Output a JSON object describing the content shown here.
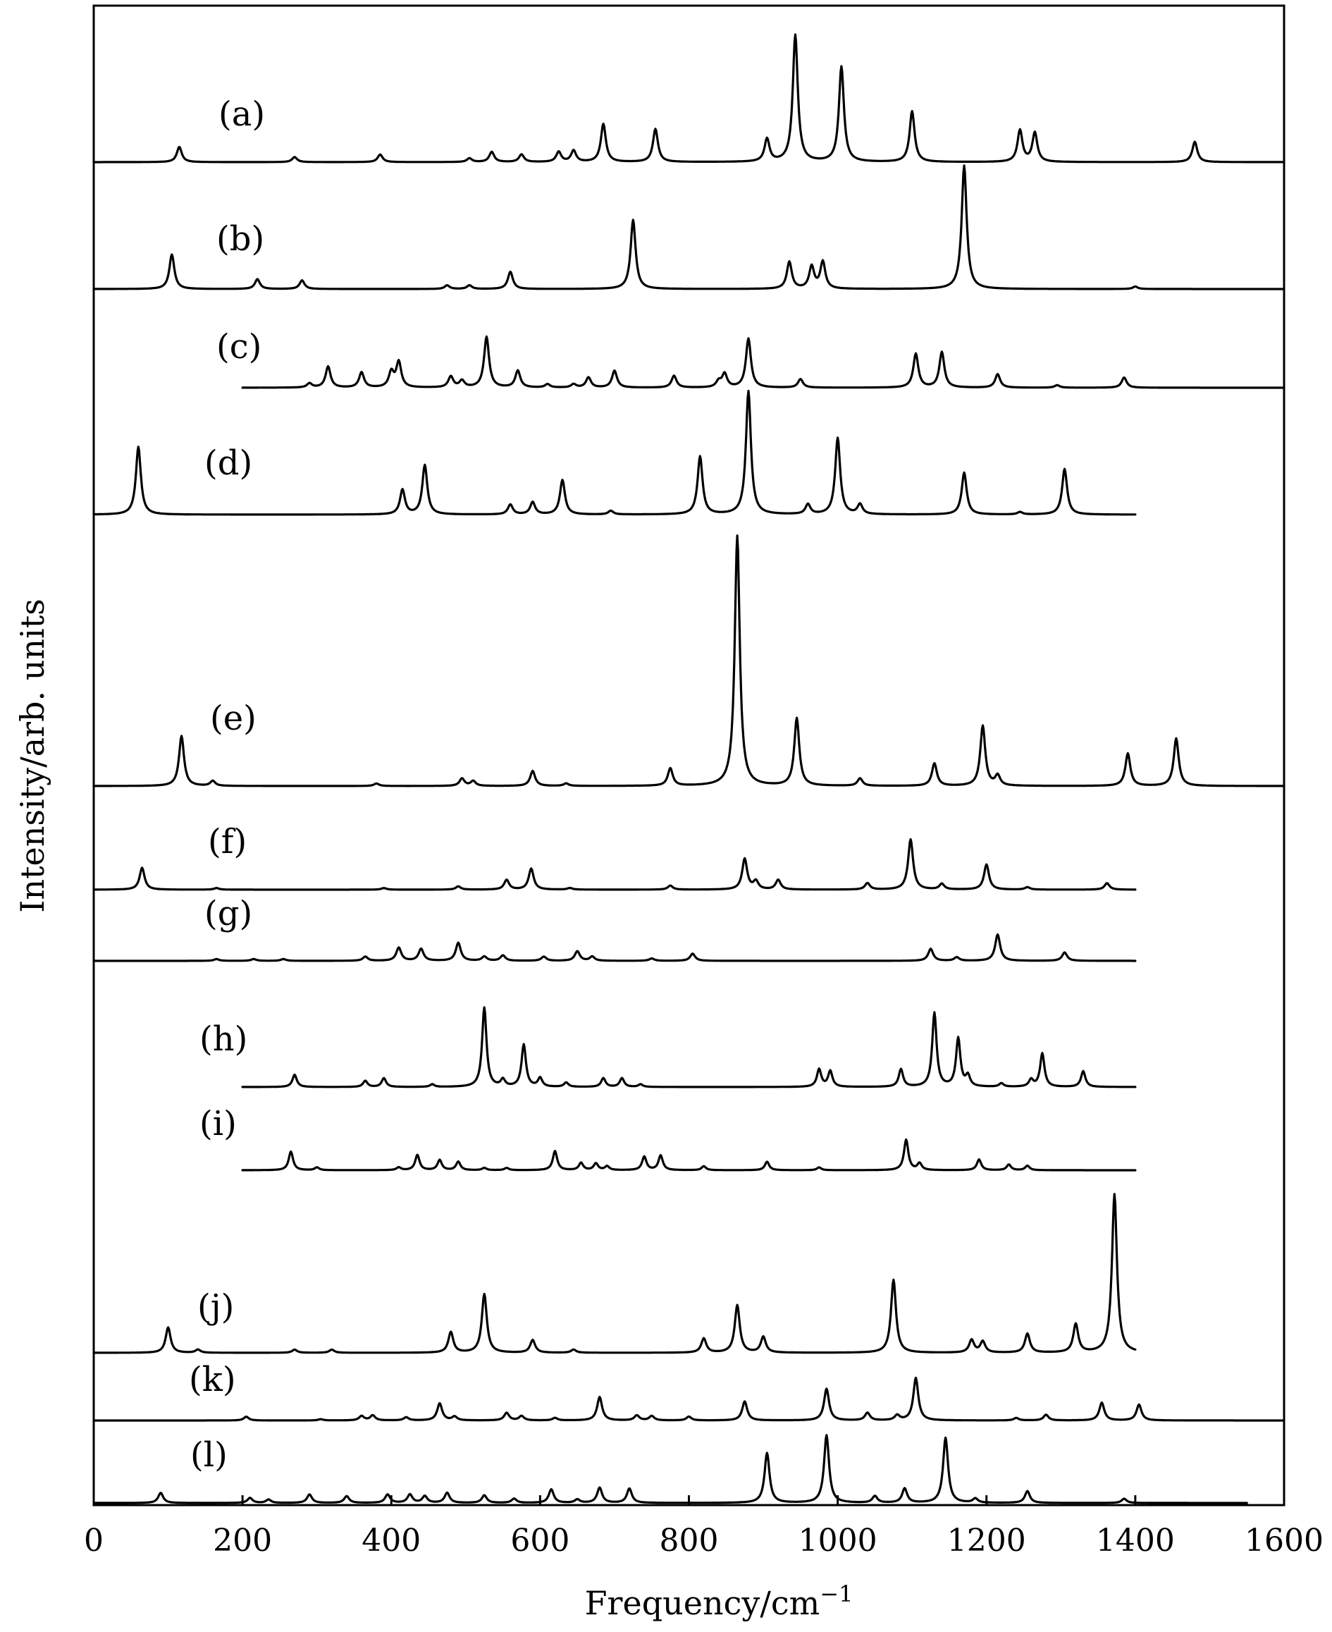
{
  "chart_data": {
    "type": "line",
    "xlabel": "Frequency/cm",
    "xlabel_sup": "−1",
    "ylabel": "Intensity/arb. units",
    "xlim": [
      0,
      1600
    ],
    "xticks": [
      0,
      200,
      400,
      600,
      800,
      1000,
      1200,
      1400,
      1600
    ],
    "grid": false,
    "legend": "none",
    "series": [
      {
        "name": "(a)",
        "x_range": [
          0,
          1600
        ],
        "peaks": [
          [
            115,
            0.12
          ],
          [
            270,
            0.04
          ],
          [
            385,
            0.06
          ],
          [
            505,
            0.03
          ],
          [
            535,
            0.08
          ],
          [
            575,
            0.06
          ],
          [
            625,
            0.08
          ],
          [
            645,
            0.09
          ],
          [
            685,
            0.3
          ],
          [
            755,
            0.26
          ],
          [
            905,
            0.18
          ],
          [
            943,
            1.0
          ],
          [
            1005,
            0.75
          ],
          [
            1100,
            0.4
          ],
          [
            1245,
            0.25
          ],
          [
            1265,
            0.23
          ],
          [
            1480,
            0.16
          ]
        ]
      },
      {
        "name": "(b)",
        "x_range": [
          0,
          1600
        ],
        "peaks": [
          [
            105,
            0.28
          ],
          [
            220,
            0.08
          ],
          [
            280,
            0.07
          ],
          [
            475,
            0.03
          ],
          [
            505,
            0.03
          ],
          [
            560,
            0.14
          ],
          [
            725,
            0.56
          ],
          [
            935,
            0.22
          ],
          [
            965,
            0.18
          ],
          [
            980,
            0.22
          ],
          [
            1170,
            1.0
          ],
          [
            1400,
            0.02
          ]
        ]
      },
      {
        "name": "(c)",
        "x_range": [
          200,
          1600
        ],
        "peaks": [
          [
            290,
            0.05
          ],
          [
            315,
            0.25
          ],
          [
            360,
            0.18
          ],
          [
            400,
            0.18
          ],
          [
            410,
            0.3
          ],
          [
            480,
            0.13
          ],
          [
            495,
            0.08
          ],
          [
            528,
            0.6
          ],
          [
            570,
            0.2
          ],
          [
            610,
            0.04
          ],
          [
            645,
            0.04
          ],
          [
            665,
            0.12
          ],
          [
            700,
            0.2
          ],
          [
            780,
            0.14
          ],
          [
            840,
            0.07
          ],
          [
            848,
            0.16
          ],
          [
            880,
            0.58
          ],
          [
            950,
            0.1
          ],
          [
            1105,
            0.4
          ],
          [
            1140,
            0.42
          ],
          [
            1215,
            0.16
          ],
          [
            1295,
            0.03
          ],
          [
            1385,
            0.12
          ]
        ]
      },
      {
        "name": "(d)",
        "x_range": [
          0,
          1400
        ],
        "peaks": [
          [
            60,
            0.55
          ],
          [
            415,
            0.2
          ],
          [
            445,
            0.4
          ],
          [
            560,
            0.08
          ],
          [
            590,
            0.1
          ],
          [
            630,
            0.28
          ],
          [
            695,
            0.03
          ],
          [
            815,
            0.47
          ],
          [
            880,
            1.0
          ],
          [
            960,
            0.08
          ],
          [
            1000,
            0.62
          ],
          [
            1030,
            0.08
          ],
          [
            1170,
            0.34
          ],
          [
            1245,
            0.02
          ],
          [
            1305,
            0.37
          ]
        ]
      },
      {
        "name": "(e)",
        "x_range": [
          0,
          1600
        ],
        "peaks": [
          [
            118,
            0.2
          ],
          [
            160,
            0.02
          ],
          [
            380,
            0.01
          ],
          [
            495,
            0.03
          ],
          [
            510,
            0.02
          ],
          [
            590,
            0.06
          ],
          [
            635,
            0.01
          ],
          [
            775,
            0.07
          ],
          [
            865,
            1.0
          ],
          [
            945,
            0.27
          ],
          [
            1030,
            0.03
          ],
          [
            1130,
            0.09
          ],
          [
            1195,
            0.24
          ],
          [
            1215,
            0.04
          ],
          [
            1390,
            0.13
          ],
          [
            1455,
            0.19
          ]
        ]
      },
      {
        "name": "(f)",
        "x_range": [
          0,
          1400
        ],
        "peaks": [
          [
            65,
            0.27
          ],
          [
            165,
            0.02
          ],
          [
            390,
            0.02
          ],
          [
            490,
            0.04
          ],
          [
            555,
            0.12
          ],
          [
            588,
            0.26
          ],
          [
            640,
            0.02
          ],
          [
            775,
            0.05
          ],
          [
            875,
            0.38
          ],
          [
            890,
            0.1
          ],
          [
            920,
            0.12
          ],
          [
            1040,
            0.08
          ],
          [
            1098,
            0.62
          ],
          [
            1140,
            0.07
          ],
          [
            1200,
            0.31
          ],
          [
            1255,
            0.03
          ],
          [
            1362,
            0.08
          ]
        ]
      },
      {
        "name": "(g)",
        "x_range": [
          0,
          1400
        ],
        "peaks": [
          [
            165,
            0.03
          ],
          [
            215,
            0.03
          ],
          [
            255,
            0.03
          ],
          [
            365,
            0.07
          ],
          [
            410,
            0.22
          ],
          [
            440,
            0.2
          ],
          [
            490,
            0.3
          ],
          [
            525,
            0.07
          ],
          [
            550,
            0.09
          ],
          [
            605,
            0.07
          ],
          [
            650,
            0.16
          ],
          [
            670,
            0.07
          ],
          [
            750,
            0.04
          ],
          [
            805,
            0.12
          ],
          [
            1125,
            0.2
          ],
          [
            1160,
            0.06
          ],
          [
            1215,
            0.44
          ],
          [
            1305,
            0.14
          ]
        ]
      },
      {
        "name": "(h)",
        "x_range": [
          200,
          1400
        ],
        "peaks": [
          [
            270,
            0.14
          ],
          [
            365,
            0.07
          ],
          [
            390,
            0.1
          ],
          [
            455,
            0.03
          ],
          [
            525,
            0.9
          ],
          [
            550,
            0.08
          ],
          [
            578,
            0.48
          ],
          [
            600,
            0.1
          ],
          [
            635,
            0.05
          ],
          [
            685,
            0.1
          ],
          [
            710,
            0.1
          ],
          [
            735,
            0.03
          ],
          [
            975,
            0.2
          ],
          [
            990,
            0.18
          ],
          [
            1085,
            0.2
          ],
          [
            1130,
            0.84
          ],
          [
            1162,
            0.55
          ],
          [
            1175,
            0.12
          ],
          [
            1220,
            0.04
          ],
          [
            1260,
            0.08
          ],
          [
            1275,
            0.38
          ],
          [
            1330,
            0.18
          ]
        ]
      },
      {
        "name": "(i)",
        "x_range": [
          200,
          1400
        ],
        "peaks": [
          [
            265,
            0.33
          ],
          [
            300,
            0.05
          ],
          [
            410,
            0.05
          ],
          [
            435,
            0.27
          ],
          [
            465,
            0.18
          ],
          [
            490,
            0.15
          ],
          [
            525,
            0.04
          ],
          [
            555,
            0.04
          ],
          [
            620,
            0.34
          ],
          [
            655,
            0.13
          ],
          [
            675,
            0.12
          ],
          [
            690,
            0.07
          ],
          [
            740,
            0.24
          ],
          [
            762,
            0.26
          ],
          [
            820,
            0.07
          ],
          [
            905,
            0.15
          ],
          [
            975,
            0.05
          ],
          [
            1092,
            0.54
          ],
          [
            1110,
            0.12
          ],
          [
            1190,
            0.19
          ],
          [
            1230,
            0.1
          ],
          [
            1255,
            0.08
          ]
        ]
      },
      {
        "name": "(j)",
        "x_range": [
          0,
          1400
        ],
        "peaks": [
          [
            100,
            0.16
          ],
          [
            140,
            0.02
          ],
          [
            270,
            0.02
          ],
          [
            320,
            0.02
          ],
          [
            480,
            0.13
          ],
          [
            525,
            0.37
          ],
          [
            590,
            0.08
          ],
          [
            645,
            0.02
          ],
          [
            820,
            0.09
          ],
          [
            865,
            0.3
          ],
          [
            900,
            0.1
          ],
          [
            1075,
            0.46
          ],
          [
            1180,
            0.08
          ],
          [
            1195,
            0.07
          ],
          [
            1255,
            0.12
          ],
          [
            1320,
            0.18
          ],
          [
            1372,
            1.0
          ]
        ]
      },
      {
        "name": "(k)",
        "x_range": [
          0,
          1600
        ],
        "peaks": [
          [
            205,
            0.06
          ],
          [
            305,
            0.02
          ],
          [
            360,
            0.07
          ],
          [
            375,
            0.08
          ],
          [
            420,
            0.05
          ],
          [
            465,
            0.27
          ],
          [
            485,
            0.06
          ],
          [
            555,
            0.12
          ],
          [
            575,
            0.07
          ],
          [
            620,
            0.04
          ],
          [
            680,
            0.37
          ],
          [
            730,
            0.08
          ],
          [
            750,
            0.07
          ],
          [
            800,
            0.06
          ],
          [
            875,
            0.3
          ],
          [
            985,
            0.5
          ],
          [
            1040,
            0.12
          ],
          [
            1080,
            0.08
          ],
          [
            1105,
            0.67
          ],
          [
            1240,
            0.04
          ],
          [
            1280,
            0.09
          ],
          [
            1355,
            0.28
          ],
          [
            1405,
            0.25
          ]
        ]
      },
      {
        "name": "(l)",
        "x_range": [
          0,
          1550
        ],
        "peaks": [
          [
            90,
            0.12
          ],
          [
            210,
            0.06
          ],
          [
            235,
            0.04
          ],
          [
            290,
            0.1
          ],
          [
            340,
            0.08
          ],
          [
            395,
            0.1
          ],
          [
            425,
            0.1
          ],
          [
            445,
            0.08
          ],
          [
            475,
            0.12
          ],
          [
            525,
            0.09
          ],
          [
            565,
            0.05
          ],
          [
            615,
            0.16
          ],
          [
            650,
            0.04
          ],
          [
            680,
            0.18
          ],
          [
            720,
            0.17
          ],
          [
            905,
            0.59
          ],
          [
            985,
            0.8
          ],
          [
            1050,
            0.08
          ],
          [
            1090,
            0.17
          ],
          [
            1145,
            0.77
          ],
          [
            1185,
            0.05
          ],
          [
            1255,
            0.14
          ],
          [
            1385,
            0.05
          ]
        ]
      }
    ]
  }
}
